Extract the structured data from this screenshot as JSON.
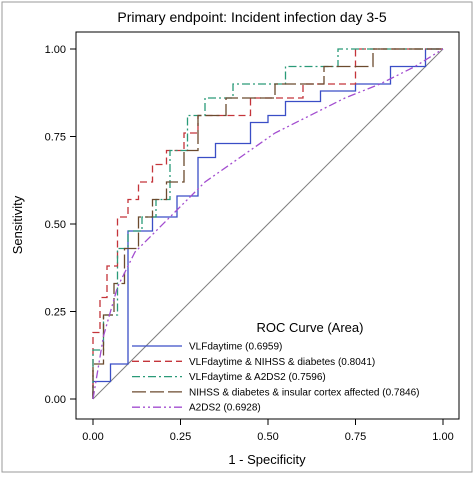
{
  "chart_data": {
    "type": "line",
    "title": "Primary endpoint: Incident infection day 3-5",
    "xlabel": "1 - Specificity",
    "ylabel": "Sensitivity",
    "xlim": [
      0,
      1
    ],
    "ylim": [
      0,
      1
    ],
    "xticks": [
      "0.00",
      "0.25",
      "0.50",
      "0.75",
      "1.00"
    ],
    "yticks": [
      "0.00",
      "0.25",
      "0.50",
      "0.75",
      "1.00"
    ],
    "legend_title": "ROC Curve (Area)",
    "legend_position": "bottom-right",
    "grid": false,
    "reference_line": {
      "x": [
        0,
        1
      ],
      "y": [
        0,
        1
      ],
      "color": "#7f7f7f"
    },
    "series": [
      {
        "name": "VLFdaytime",
        "area": "(0.6959)",
        "color": "#3a4ec6",
        "dash": "solid",
        "x": [
          0,
          0,
          0.05,
          0.05,
          0.1,
          0.1,
          0.17,
          0.17,
          0.24,
          0.24,
          0.3,
          0.3,
          0.35,
          0.35,
          0.45,
          0.45,
          0.5,
          0.5,
          0.55,
          0.55,
          0.65,
          0.65,
          0.75,
          0.75,
          0.85,
          0.85,
          0.95,
          0.95,
          1.0
        ],
        "y": [
          0,
          0.05,
          0.05,
          0.1,
          0.1,
          0.48,
          0.48,
          0.52,
          0.52,
          0.58,
          0.58,
          0.69,
          0.69,
          0.73,
          0.73,
          0.79,
          0.79,
          0.81,
          0.81,
          0.85,
          0.85,
          0.88,
          0.88,
          0.9,
          0.9,
          0.95,
          0.95,
          1.0,
          1.0
        ]
      },
      {
        "name": "VLFdaytime & NIHSS & diabetes",
        "area": "(0.8041)",
        "color": "#c4343a",
        "dash": "dashed",
        "x": [
          0,
          0,
          0.02,
          0.02,
          0.04,
          0.04,
          0.07,
          0.07,
          0.1,
          0.1,
          0.13,
          0.13,
          0.17,
          0.17,
          0.21,
          0.21,
          0.26,
          0.26,
          0.3,
          0.3,
          0.45,
          0.45,
          0.6,
          0.6,
          0.75,
          0.75,
          1.0
        ],
        "y": [
          0,
          0.19,
          0.19,
          0.29,
          0.29,
          0.38,
          0.38,
          0.52,
          0.52,
          0.57,
          0.57,
          0.62,
          0.62,
          0.67,
          0.67,
          0.71,
          0.71,
          0.76,
          0.76,
          0.81,
          0.81,
          0.86,
          0.86,
          0.9,
          0.9,
          1.0,
          1.0
        ]
      },
      {
        "name": "VLFdaytime & A2DS2",
        "area": "(0.7596)",
        "color": "#2a9a78",
        "dash": "dashdot",
        "x": [
          0,
          0,
          0.03,
          0.03,
          0.07,
          0.07,
          0.1,
          0.1,
          0.14,
          0.14,
          0.18,
          0.18,
          0.22,
          0.22,
          0.27,
          0.27,
          0.32,
          0.32,
          0.4,
          0.4,
          0.55,
          0.55,
          0.7,
          0.7,
          1.0
        ],
        "y": [
          0,
          0.14,
          0.14,
          0.24,
          0.24,
          0.43,
          0.43,
          0.48,
          0.48,
          0.52,
          0.52,
          0.57,
          0.57,
          0.71,
          0.71,
          0.81,
          0.81,
          0.86,
          0.86,
          0.9,
          0.9,
          0.95,
          0.95,
          1.0,
          1.0
        ]
      },
      {
        "name": "NIHSS & diabetes & insular cortex affected",
        "area": "(0.7846)",
        "color": "#6b4a2e",
        "dash": "longdash",
        "x": [
          0,
          0,
          0.03,
          0.03,
          0.06,
          0.06,
          0.09,
          0.09,
          0.13,
          0.13,
          0.17,
          0.17,
          0.21,
          0.21,
          0.26,
          0.26,
          0.3,
          0.3,
          0.38,
          0.38,
          0.52,
          0.52,
          0.66,
          0.66,
          0.8,
          0.8,
          1.0
        ],
        "y": [
          0,
          0.1,
          0.1,
          0.24,
          0.24,
          0.33,
          0.33,
          0.43,
          0.43,
          0.52,
          0.52,
          0.57,
          0.57,
          0.62,
          0.62,
          0.71,
          0.71,
          0.81,
          0.81,
          0.86,
          0.86,
          0.9,
          0.9,
          0.95,
          0.95,
          1.0,
          1.0
        ]
      },
      {
        "name": "A2DS2",
        "area": "(0.6928)",
        "color": "#a34ed0",
        "dash": "dashdotdot",
        "x": [
          0,
          0.03,
          0.07,
          0.12,
          0.18,
          0.25,
          0.32,
          0.42,
          0.52,
          0.62,
          0.72,
          0.82,
          0.92,
          1.0
        ],
        "y": [
          0,
          0.18,
          0.32,
          0.42,
          0.48,
          0.55,
          0.62,
          0.69,
          0.76,
          0.81,
          0.86,
          0.9,
          0.95,
          1.0
        ]
      }
    ]
  }
}
